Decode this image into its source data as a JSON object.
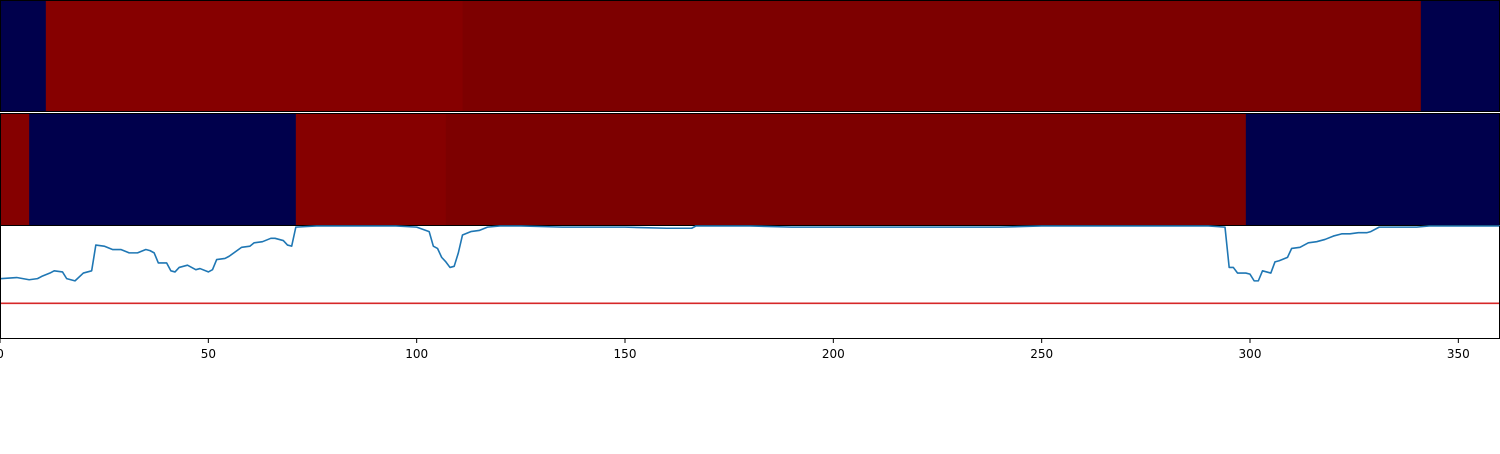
{
  "chart_data": [
    {
      "type": "heatmap",
      "title": "",
      "xlabel": "",
      "ylabel": "",
      "xlim": [
        0,
        360
      ],
      "segments": [
        {
          "x0": 0,
          "x1": 11,
          "color": "#00004c"
        },
        {
          "x0": 11,
          "x1": 111,
          "color": "#860000"
        },
        {
          "x0": 111,
          "x1": 341,
          "color": "#7d0000"
        },
        {
          "x0": 341,
          "x1": 360,
          "color": "#00004c"
        }
      ]
    },
    {
      "type": "heatmap",
      "title": "",
      "xlabel": "",
      "ylabel": "",
      "xlim": [
        0,
        360
      ],
      "segments": [
        {
          "x0": 0,
          "x1": 7,
          "color": "#850000"
        },
        {
          "x0": 7,
          "x1": 71,
          "color": "#00004c"
        },
        {
          "x0": 71,
          "x1": 107,
          "color": "#860000"
        },
        {
          "x0": 107,
          "x1": 299,
          "color": "#7d0000"
        },
        {
          "x0": 299,
          "x1": 360,
          "color": "#00004c"
        }
      ]
    },
    {
      "type": "line",
      "title": "",
      "xlabel": "",
      "ylabel": "",
      "xlim": [
        0,
        360
      ],
      "ylim": [
        0,
        1
      ],
      "grid": false,
      "line_color": "#1f77b4",
      "threshold": {
        "y": 0.31,
        "color": "#d62728"
      },
      "xticks": [
        0,
        50,
        100,
        150,
        200,
        250,
        300,
        350
      ],
      "x": [
        0,
        4,
        7,
        9,
        10,
        12,
        13,
        15,
        16,
        17,
        18,
        20,
        22,
        23,
        25,
        27,
        29,
        31,
        33,
        35,
        36,
        37,
        38,
        40,
        41,
        42,
        43,
        45,
        47,
        48,
        50,
        51,
        52,
        54,
        55,
        58,
        60,
        61,
        63,
        65,
        66,
        68,
        69,
        70,
        71,
        76,
        80,
        85,
        90,
        95,
        100,
        103,
        104,
        105,
        106,
        107,
        108,
        109,
        110,
        111,
        113,
        115,
        117,
        120,
        125,
        135,
        150,
        160,
        166,
        167,
        170,
        180,
        190,
        200,
        210,
        220,
        230,
        240,
        250,
        260,
        270,
        280,
        290,
        294,
        295,
        296,
        297,
        298,
        299,
        300,
        301,
        302,
        303,
        305,
        306,
        307,
        309,
        310,
        312,
        314,
        316,
        318,
        320,
        322,
        324,
        326,
        328,
        329,
        331,
        333,
        336,
        340,
        343,
        360
      ],
      "y": [
        0.53,
        0.54,
        0.52,
        0.53,
        0.55,
        0.58,
        0.6,
        0.59,
        0.53,
        0.52,
        0.51,
        0.58,
        0.6,
        0.83,
        0.82,
        0.79,
        0.79,
        0.76,
        0.76,
        0.79,
        0.78,
        0.76,
        0.67,
        0.67,
        0.6,
        0.59,
        0.63,
        0.65,
        0.61,
        0.62,
        0.59,
        0.61,
        0.7,
        0.71,
        0.73,
        0.81,
        0.82,
        0.85,
        0.86,
        0.89,
        0.89,
        0.87,
        0.83,
        0.82,
        0.99,
        1.0,
        1.0,
        1.0,
        1.0,
        1.0,
        0.99,
        0.95,
        0.82,
        0.8,
        0.72,
        0.68,
        0.63,
        0.64,
        0.76,
        0.92,
        0.95,
        0.96,
        0.99,
        1.0,
        1.0,
        0.99,
        0.99,
        0.98,
        0.98,
        1.0,
        1.0,
        1.0,
        0.99,
        0.99,
        0.99,
        0.99,
        0.99,
        0.99,
        1.0,
        1.0,
        1.0,
        1.0,
        1.0,
        0.99,
        0.63,
        0.63,
        0.58,
        0.58,
        0.58,
        0.57,
        0.51,
        0.51,
        0.6,
        0.58,
        0.68,
        0.69,
        0.72,
        0.8,
        0.81,
        0.85,
        0.86,
        0.88,
        0.91,
        0.93,
        0.93,
        0.94,
        0.94,
        0.95,
        0.99,
        0.99,
        0.99,
        0.99,
        1.0,
        1.0
      ]
    }
  ]
}
